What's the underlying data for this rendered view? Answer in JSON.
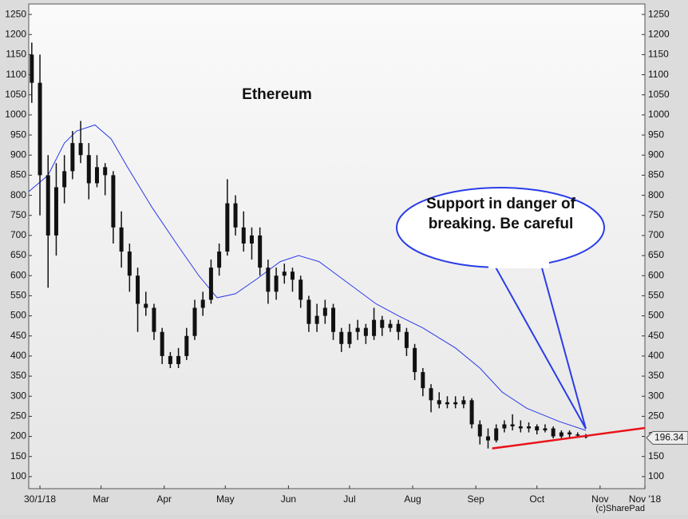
{
  "chart_data": {
    "type": "candlestick",
    "title": "Ethereum",
    "x": [
      -4,
      0,
      4,
      8,
      12,
      16,
      20,
      24,
      28,
      32,
      36,
      40,
      44,
      48,
      52,
      56,
      60,
      64,
      68,
      72,
      76,
      80,
      84,
      88,
      92,
      96,
      100,
      104,
      108,
      112,
      116,
      120,
      124,
      128,
      132,
      136,
      140,
      144,
      148,
      152,
      156,
      160,
      164,
      168,
      172,
      176,
      180,
      184,
      188,
      192,
      196,
      200,
      204,
      208,
      212,
      216,
      220,
      224,
      228,
      232,
      236,
      240,
      244,
      248,
      252,
      256,
      260,
      264,
      268
    ],
    "open": [
      1150,
      1080,
      850,
      700,
      820,
      860,
      930,
      900,
      830,
      870,
      850,
      720,
      660,
      600,
      530,
      520,
      460,
      400,
      380,
      400,
      450,
      520,
      540,
      620,
      660,
      780,
      720,
      680,
      700,
      620,
      560,
      600,
      610,
      590,
      540,
      480,
      500,
      520,
      460,
      430,
      460,
      470,
      450,
      490,
      470,
      480,
      460,
      420,
      360,
      320,
      290,
      280,
      285,
      280,
      290,
      230,
      200,
      190,
      220,
      230,
      225,
      220,
      225,
      215,
      220,
      200,
      210,
      205,
      202
    ],
    "high": [
      1180,
      1150,
      900,
      880,
      900,
      960,
      985,
      930,
      900,
      880,
      860,
      760,
      680,
      620,
      560,
      530,
      470,
      410,
      420,
      470,
      540,
      560,
      640,
      680,
      840,
      800,
      760,
      720,
      720,
      640,
      620,
      630,
      620,
      600,
      550,
      530,
      540,
      530,
      470,
      480,
      490,
      480,
      520,
      500,
      490,
      490,
      470,
      430,
      370,
      330,
      310,
      300,
      300,
      300,
      295,
      240,
      220,
      230,
      240,
      255,
      240,
      235,
      230,
      230,
      225,
      215,
      215,
      210,
      206
    ],
    "low": [
      1030,
      750,
      570,
      650,
      780,
      840,
      880,
      790,
      820,
      800,
      680,
      620,
      560,
      460,
      500,
      440,
      380,
      370,
      370,
      390,
      440,
      500,
      530,
      600,
      650,
      700,
      660,
      640,
      600,
      530,
      540,
      580,
      560,
      520,
      460,
      460,
      480,
      440,
      410,
      420,
      440,
      430,
      440,
      450,
      460,
      440,
      400,
      340,
      300,
      260,
      270,
      270,
      270,
      270,
      220,
      180,
      170,
      185,
      210,
      215,
      210,
      210,
      205,
      210,
      195,
      195,
      198,
      198,
      195
    ],
    "close": [
      1080,
      850,
      700,
      820,
      860,
      930,
      900,
      830,
      870,
      850,
      720,
      660,
      600,
      530,
      520,
      460,
      400,
      380,
      400,
      450,
      520,
      540,
      620,
      660,
      780,
      720,
      680,
      700,
      620,
      560,
      600,
      610,
      590,
      540,
      480,
      500,
      520,
      460,
      430,
      460,
      470,
      450,
      490,
      470,
      480,
      460,
      420,
      360,
      320,
      290,
      280,
      285,
      280,
      290,
      230,
      200,
      190,
      220,
      230,
      225,
      220,
      225,
      215,
      220,
      200,
      210,
      205,
      202,
      198
    ],
    "color": "#111111",
    "moving_average": {
      "color": "#2a3ce8",
      "x": [
        -5.5,
        4,
        12,
        18,
        27,
        35,
        43,
        55,
        67,
        78,
        87,
        96,
        106,
        118,
        127,
        137,
        149,
        165,
        176,
        188,
        204,
        216,
        227,
        239,
        255,
        268
      ],
      "values": [
        809,
        850,
        930,
        960,
        975,
        940,
        870,
        770,
        680,
        600,
        545,
        555,
        590,
        635,
        650,
        635,
        590,
        530,
        500,
        470,
        420,
        370,
        310,
        270,
        237,
        215
      ]
    },
    "trendline": {
      "color": "#e8141a",
      "x": [
        222,
        297
      ],
      "values": [
        170,
        221
      ]
    },
    "last_price": 196.34,
    "annotation": "Support in danger of breaking. Be careful",
    "watermark": "(c)SharePad",
    "xlim": [
      -5.5,
      297
    ],
    "xticks": [
      {
        "value": 0,
        "label": "30/1/18"
      },
      {
        "value": 30,
        "label": "Mar"
      },
      {
        "value": 61,
        "label": "Apr"
      },
      {
        "value": 91,
        "label": "May"
      },
      {
        "value": 122,
        "label": "Jun"
      },
      {
        "value": 152,
        "label": "Jul"
      },
      {
        "value": 183,
        "label": "Aug"
      },
      {
        "value": 214,
        "label": "Sep"
      },
      {
        "value": 244,
        "label": "Oct"
      },
      {
        "value": 275,
        "label": "Nov"
      },
      {
        "value": 297,
        "label": "Nov '18"
      }
    ],
    "ylim": [
      70,
      1276
    ],
    "yticks": [
      100,
      150,
      200,
      250,
      300,
      350,
      400,
      450,
      500,
      550,
      600,
      650,
      700,
      750,
      800,
      850,
      900,
      950,
      1000,
      1050,
      1100,
      1150,
      1200,
      1250
    ]
  }
}
